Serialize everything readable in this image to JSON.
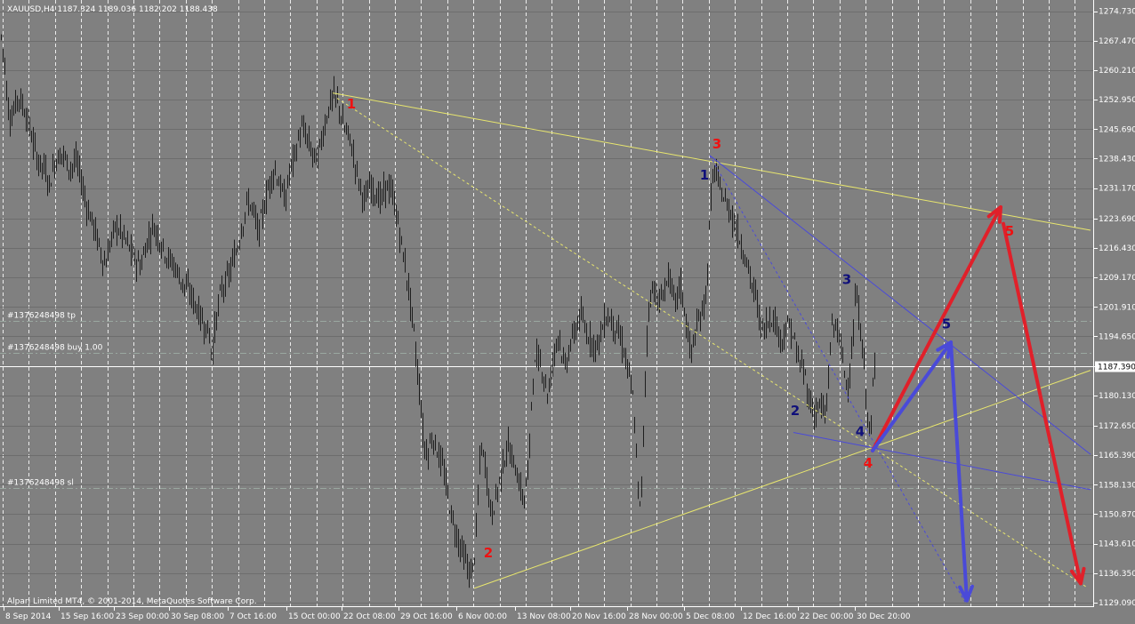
{
  "header": "XAUUSD,H4  1187.324 1189.036 1182.202 1188.438",
  "footer": "Alpari Limited MT4, © 2001-2014, MetaQuotes Software Corp.",
  "colors": {
    "background": "#808080",
    "grid": "#ffffff",
    "candles": "#1e1e1e",
    "trendline": "#e8e66e",
    "red_wave": "#e0202a",
    "blue_wave": "#4a4ad8",
    "red_label": "#ee1111",
    "blue_label": "#10107a"
  },
  "orders": [
    {
      "label": "#1376248498 tp",
      "price": 1198.5
    },
    {
      "label": "#1376248498 buy 1.00",
      "price": 1190.5
    },
    {
      "label": "#1376248498 sl",
      "price": 1157.4
    }
  ],
  "price_labels": [
    "1274.730",
    "1267.470",
    "1260.210",
    "1252.950",
    "1245.690",
    "1238.430",
    "1231.170",
    "1223.690",
    "1216.430",
    "1209.170",
    "1201.910",
    "1194.650",
    "1187.390",
    "1180.130",
    "1172.650",
    "1165.390",
    "1158.130",
    "1150.870",
    "1143.610",
    "1136.350",
    "1129.090"
  ],
  "current_price": "1187.390",
  "chart_data": {
    "type": "candlestick",
    "symbol": "XAUUSD",
    "timeframe": "H4",
    "ylim": [
      1128.2,
      1277.5
    ],
    "x_labels": [
      "8 Sep 2014",
      "15 Sep 16:00",
      "23 Sep 00:00",
      "30 Sep 08:00",
      "7 Oct 16:00",
      "15 Oct 00:00",
      "22 Oct 08:00",
      "29 Oct 16:00",
      "6 Nov 00:00",
      "13 Nov 08:00",
      "20 Nov 16:00",
      "28 Nov 00:00",
      "5 Dec 08:00",
      "12 Dec 16:00",
      "22 Dec 00:00",
      "30 Dec 20:00"
    ],
    "price_path": [
      [
        0,
        1270
      ],
      [
        5,
        1262
      ],
      [
        8,
        1252
      ],
      [
        12,
        1248
      ],
      [
        20,
        1254
      ],
      [
        28,
        1250
      ],
      [
        35,
        1244
      ],
      [
        42,
        1238
      ],
      [
        50,
        1236
      ],
      [
        55,
        1232
      ],
      [
        62,
        1238
      ],
      [
        70,
        1240
      ],
      [
        78,
        1236
      ],
      [
        86,
        1238
      ],
      [
        92,
        1232
      ],
      [
        98,
        1226
      ],
      [
        105,
        1222
      ],
      [
        112,
        1216
      ],
      [
        118,
        1212
      ],
      [
        124,
        1218
      ],
      [
        130,
        1222
      ],
      [
        136,
        1220
      ],
      [
        142,
        1218
      ],
      [
        150,
        1214
      ],
      [
        158,
        1212
      ],
      [
        165,
        1218
      ],
      [
        172,
        1222
      ],
      [
        180,
        1218
      ],
      [
        188,
        1214
      ],
      [
        196,
        1212
      ],
      [
        204,
        1208
      ],
      [
        212,
        1206
      ],
      [
        220,
        1202
      ],
      [
        228,
        1198
      ],
      [
        234,
        1196
      ],
      [
        238,
        1190
      ],
      [
        242,
        1198
      ],
      [
        248,
        1206
      ],
      [
        254,
        1208
      ],
      [
        260,
        1212
      ],
      [
        266,
        1216
      ],
      [
        272,
        1222
      ],
      [
        278,
        1228
      ],
      [
        284,
        1226
      ],
      [
        290,
        1220
      ],
      [
        296,
        1226
      ],
      [
        302,
        1232
      ],
      [
        308,
        1236
      ],
      [
        314,
        1232
      ],
      [
        320,
        1228
      ],
      [
        326,
        1236
      ],
      [
        332,
        1240
      ],
      [
        338,
        1246
      ],
      [
        344,
        1244
      ],
      [
        350,
        1240
      ],
      [
        356,
        1238
      ],
      [
        362,
        1244
      ],
      [
        368,
        1250
      ],
      [
        374,
        1254
      ],
      [
        380,
        1252
      ],
      [
        386,
        1246
      ],
      [
        392,
        1244
      ],
      [
        398,
        1238
      ],
      [
        404,
        1232
      ],
      [
        410,
        1228
      ],
      [
        416,
        1232
      ],
      [
        422,
        1230
      ],
      [
        428,
        1228
      ],
      [
        434,
        1232
      ],
      [
        440,
        1230
      ],
      [
        446,
        1224
      ],
      [
        452,
        1216
      ],
      [
        458,
        1208
      ],
      [
        464,
        1198
      ],
      [
        468,
        1188
      ],
      [
        472,
        1180
      ],
      [
        476,
        1168
      ],
      [
        480,
        1166
      ],
      [
        486,
        1170
      ],
      [
        492,
        1166
      ],
      [
        498,
        1162
      ],
      [
        504,
        1154
      ],
      [
        510,
        1148
      ],
      [
        516,
        1144
      ],
      [
        522,
        1140
      ],
      [
        528,
        1136
      ],
      [
        532,
        1138
      ],
      [
        536,
        1150
      ],
      [
        540,
        1168
      ],
      [
        546,
        1162
      ],
      [
        552,
        1150
      ],
      [
        558,
        1156
      ],
      [
        564,
        1162
      ],
      [
        570,
        1168
      ],
      [
        576,
        1164
      ],
      [
        582,
        1160
      ],
      [
        588,
        1154
      ],
      [
        594,
        1162
      ],
      [
        598,
        1184
      ],
      [
        604,
        1190
      ],
      [
        610,
        1186
      ],
      [
        616,
        1180
      ],
      [
        622,
        1190
      ],
      [
        628,
        1196
      ],
      [
        634,
        1186
      ],
      [
        640,
        1192
      ],
      [
        646,
        1196
      ],
      [
        652,
        1200
      ],
      [
        658,
        1196
      ],
      [
        664,
        1194
      ],
      [
        670,
        1192
      ],
      [
        676,
        1196
      ],
      [
        682,
        1200
      ],
      [
        688,
        1198
      ],
      [
        694,
        1196
      ],
      [
        700,
        1192
      ],
      [
        706,
        1186
      ],
      [
        712,
        1178
      ],
      [
        716,
        1160
      ],
      [
        720,
        1150
      ],
      [
        724,
        1178
      ],
      [
        728,
        1200
      ],
      [
        734,
        1208
      ],
      [
        740,
        1202
      ],
      [
        746,
        1206
      ],
      [
        752,
        1210
      ],
      [
        758,
        1202
      ],
      [
        764,
        1208
      ],
      [
        770,
        1200
      ],
      [
        776,
        1190
      ],
      [
        782,
        1196
      ],
      [
        788,
        1200
      ],
      [
        794,
        1206
      ],
      [
        798,
        1226
      ],
      [
        802,
        1236
      ],
      [
        808,
        1232
      ],
      [
        814,
        1228
      ],
      [
        820,
        1226
      ],
      [
        826,
        1222
      ],
      [
        832,
        1218
      ],
      [
        838,
        1214
      ],
      [
        844,
        1208
      ],
      [
        850,
        1204
      ],
      [
        856,
        1196
      ],
      [
        862,
        1198
      ],
      [
        868,
        1200
      ],
      [
        874,
        1196
      ],
      [
        880,
        1194
      ],
      [
        886,
        1198
      ],
      [
        892,
        1194
      ],
      [
        898,
        1188
      ],
      [
        904,
        1186
      ],
      [
        910,
        1178
      ],
      [
        916,
        1176
      ],
      [
        922,
        1178
      ],
      [
        928,
        1174
      ],
      [
        934,
        1196
      ],
      [
        940,
        1198
      ],
      [
        946,
        1190
      ],
      [
        952,
        1182
      ],
      [
        958,
        1192
      ],
      [
        962,
        1206
      ],
      [
        966,
        1198
      ],
      [
        970,
        1190
      ],
      [
        974,
        1178
      ],
      [
        978,
        1168
      ],
      [
        982,
        1186
      ],
      [
        984,
        1188
      ]
    ],
    "trendlines": [
      {
        "style": "solid",
        "color": "trendline",
        "points": [
          [
            374,
            1254.6
          ],
          [
            1226,
            1220.8
          ]
        ]
      },
      {
        "style": "solid",
        "color": "trendline",
        "points": [
          [
            533,
            1132.6
          ],
          [
            1226,
            1186.3
          ]
        ]
      },
      {
        "style": "dashed",
        "color": "trendline",
        "points": [
          [
            379,
            1253.3
          ],
          [
            1223,
            1132.7
          ]
        ]
      },
      {
        "style": "dashed",
        "color": "blue_wave",
        "points": [
          [
            798,
            1239.2
          ],
          [
            1085,
            1129.2
          ]
        ]
      },
      {
        "style": "solid",
        "color": "blue_wave",
        "points": [
          [
            798,
            1239.2
          ],
          [
            1226,
            1165.6
          ]
        ]
      },
      {
        "style": "solid",
        "color": "blue_wave",
        "points": [
          [
            892,
            1171.0
          ],
          [
            1226,
            1156.9
          ]
        ]
      }
    ],
    "wave_arrows": [
      {
        "color": "red_wave",
        "from": [
          981,
          1166.5
        ],
        "to": [
          1125,
          1226.5
        ]
      },
      {
        "color": "red_wave",
        "from": [
          1128,
          1222.4
        ],
        "to": [
          1215,
          1133.8
        ]
      },
      {
        "color": "blue_wave",
        "from": [
          981,
          1166.5
        ],
        "to": [
          1069,
          1193.2
        ]
      },
      {
        "color": "blue_wave",
        "from": [
          1069,
          1193.2
        ],
        "to": [
          1087,
          1129.6
        ]
      }
    ],
    "wave_labels": [
      {
        "text": "1",
        "color": "red_label",
        "at": [
          395,
          1250.8
        ]
      },
      {
        "text": "2",
        "color": "red_label",
        "at": [
          549,
          1140.2
        ]
      },
      {
        "text": "3",
        "color": "red_label",
        "at": [
          806,
          1240.9
        ]
      },
      {
        "text": "4",
        "color": "red_label",
        "at": [
          976,
          1162.3
        ]
      },
      {
        "text": "5",
        "color": "red_label",
        "at": [
          1135,
          1219.5
        ]
      },
      {
        "text": "1",
        "color": "blue_label",
        "at": [
          792,
          1233.3
        ]
      },
      {
        "text": "2",
        "color": "blue_label",
        "at": [
          894,
          1175.3
        ]
      },
      {
        "text": "3",
        "color": "blue_label",
        "at": [
          952,
          1207.6
        ]
      },
      {
        "text": "4",
        "color": "blue_label",
        "at": [
          967,
          1170.1
        ]
      },
      {
        "text": "5",
        "color": "blue_label",
        "at": [
          1064,
          1196.6
        ]
      }
    ]
  }
}
